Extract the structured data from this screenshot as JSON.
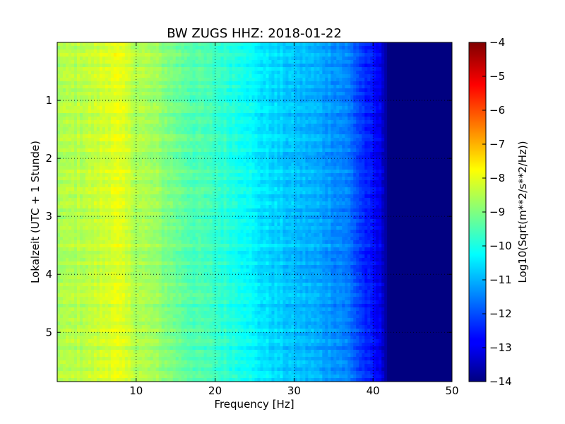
{
  "chart_data": {
    "type": "heatmap",
    "title": "BW ZUGS HHZ: 2018-01-22",
    "xlabel": "Frequency [Hz]",
    "ylabel": "Lokalzeit (UTC + 1 Stunde)",
    "colorbar_label": "Log10(Sqrt(m**2/s**2/Hz))",
    "xlim": [
      0,
      50
    ],
    "ylim": [
      5.85,
      0
    ],
    "clim": [
      -14,
      -4
    ],
    "colormap": "jet",
    "grid": true,
    "x_ticks": [
      10,
      20,
      30,
      40,
      50
    ],
    "y_ticks": [
      1,
      2,
      3,
      4,
      5
    ],
    "colorbar_ticks": [
      -4,
      -5,
      -6,
      -7,
      -8,
      -9,
      -10,
      -11,
      -12,
      -13,
      -14
    ],
    "frequency_profile": {
      "frequency_hz": [
        0,
        2,
        4,
        6,
        7,
        8,
        9,
        10,
        12,
        14,
        16,
        18,
        20,
        22,
        24,
        25,
        26,
        28,
        30,
        32,
        34,
        36,
        37,
        38,
        39,
        40,
        41,
        42,
        50
      ],
      "log10_amplitude": [
        -8.6,
        -8.5,
        -8.4,
        -8.2,
        -8.0,
        -8.1,
        -8.3,
        -8.5,
        -8.7,
        -9.0,
        -9.3,
        -9.5,
        -9.7,
        -9.9,
        -10.1,
        -10.4,
        -10.5,
        -10.7,
        -10.9,
        -11.0,
        -11.2,
        -11.4,
        -11.6,
        -12.0,
        -12.4,
        -12.7,
        -13.0,
        -14.0,
        -14.0
      ]
    }
  }
}
